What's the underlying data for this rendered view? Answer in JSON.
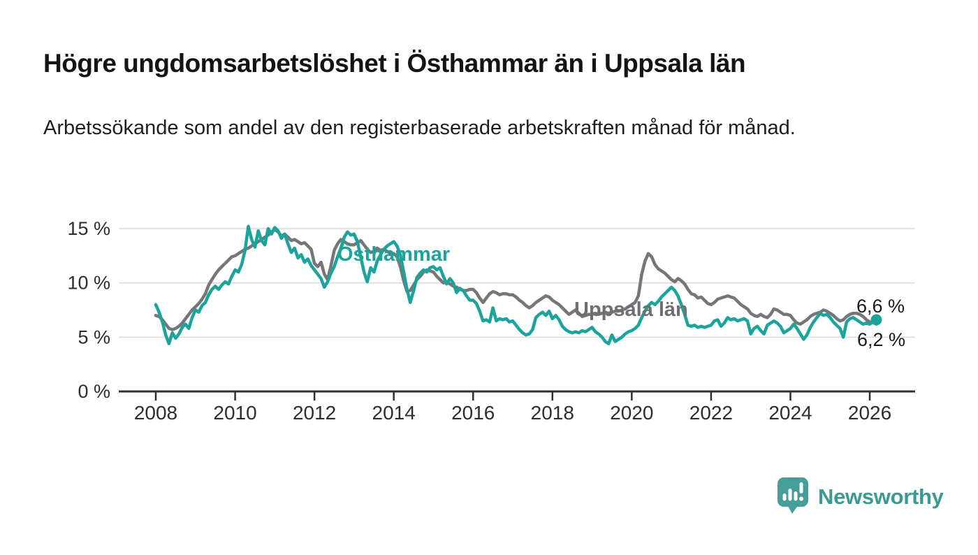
{
  "header": {
    "title": "Högre ungdomsarbetslöshet i Östhammar än i Uppsala län",
    "subtitle": "Arbetssökande som andel av den registerbaserade arbetskraften månad för månad."
  },
  "chart_data": {
    "type": "line",
    "title": "Högre ungdomsarbetslöshet i Östhammar än i Uppsala län",
    "subtitle": "Arbetssökande som andel av den registerbaserade arbetskraften månad för månad.",
    "unit": "%",
    "frequency": "monthly",
    "x_start": "2008-01",
    "x_end": "2026-03",
    "grid": "horizontal-only",
    "legend_position": "inline-labels-on-lines",
    "y_axis": {
      "range": [
        0,
        15.5
      ],
      "ticks": [
        {
          "value": 0,
          "label": "0 %"
        },
        {
          "value": 5,
          "label": "5 %"
        },
        {
          "value": 10,
          "label": "10 %"
        },
        {
          "value": 15,
          "label": "15 %"
        }
      ]
    },
    "x_axis": {
      "ticks": [
        2008,
        2010,
        2012,
        2014,
        2016,
        2018,
        2020,
        2022,
        2024,
        2026
      ]
    },
    "series": [
      {
        "name": "Uppsala län",
        "color": "#75767a",
        "values": [
          7.0,
          6.9,
          6.6,
          6.2,
          5.8,
          5.7,
          5.8,
          6.0,
          6.3,
          6.7,
          7.1,
          7.5,
          7.8,
          8.1,
          8.5,
          9.0,
          9.8,
          10.3,
          10.8,
          11.2,
          11.5,
          11.8,
          12.1,
          12.4,
          12.5,
          12.7,
          12.9,
          13.1,
          13.2,
          13.4,
          13.6,
          13.8,
          14.0,
          14.2,
          14.4,
          14.7,
          14.9,
          14.7,
          14.3,
          14.5,
          14.2,
          13.9,
          14.0,
          13.8,
          13.6,
          13.7,
          13.4,
          13.1,
          11.8,
          11.5,
          11.9,
          10.8,
          10.3,
          11.6,
          13.0,
          13.6,
          14.0,
          13.8,
          13.6,
          13.5,
          13.5,
          13.7,
          13.9,
          13.5,
          13.1,
          12.8,
          12.9,
          13.2,
          13.0,
          13.1,
          12.9,
          12.7,
          12.7,
          12.4,
          11.5,
          10.2,
          9.2,
          9.3,
          9.8,
          10.3,
          10.6,
          11.0,
          11.2,
          11.1,
          11.0,
          10.6,
          10.3,
          10.0,
          10.1,
          9.9,
          9.7,
          9.6,
          9.4,
          9.3,
          9.3,
          9.4,
          9.4,
          9.1,
          8.6,
          8.2,
          8.6,
          9.0,
          9.2,
          9.1,
          8.9,
          9.0,
          9.0,
          8.9,
          8.9,
          8.7,
          8.4,
          8.2,
          7.9,
          7.7,
          7.9,
          8.2,
          8.4,
          8.6,
          8.8,
          8.7,
          8.4,
          8.2,
          8.0,
          7.7,
          7.4,
          7.1,
          7.3,
          7.5,
          7.2,
          6.9,
          7.0,
          7.1,
          7.1,
          7.2,
          7.1,
          7.2,
          7.3,
          7.2,
          7.3,
          7.4,
          7.4,
          7.5,
          7.6,
          7.8,
          8.0,
          8.2,
          8.8,
          10.8,
          12.0,
          12.7,
          12.4,
          11.7,
          11.3,
          11.1,
          10.9,
          10.6,
          10.3,
          10.1,
          10.4,
          10.2,
          9.9,
          9.4,
          9.0,
          8.9,
          8.6,
          8.7,
          8.4,
          8.1,
          8.0,
          8.2,
          8.5,
          8.6,
          8.7,
          8.8,
          8.7,
          8.6,
          8.3,
          8.0,
          7.8,
          7.6,
          7.2,
          7.0,
          6.9,
          7.1,
          6.9,
          6.8,
          7.1,
          7.6,
          7.5,
          7.3,
          7.1,
          7.1,
          7.0,
          6.6,
          6.3,
          6.2,
          6.4,
          6.6,
          6.9,
          7.1,
          7.2,
          7.3,
          7.5,
          7.4,
          7.2,
          7.0,
          6.7,
          6.5,
          6.6,
          6.9,
          7.1,
          7.2,
          7.2,
          7.1,
          6.9,
          6.6,
          6.4,
          6.4,
          6.2
        ]
      },
      {
        "name": "Östhammar",
        "color": "#1ba49c",
        "values": [
          8.0,
          7.3,
          6.4,
          5.2,
          4.4,
          5.4,
          4.9,
          5.3,
          5.9,
          6.2,
          5.8,
          6.8,
          7.5,
          7.3,
          7.9,
          8.2,
          8.9,
          9.4,
          9.7,
          9.4,
          9.8,
          10.1,
          9.9,
          10.6,
          11.2,
          11.0,
          11.7,
          13.0,
          15.2,
          14.0,
          13.3,
          14.8,
          13.9,
          13.5,
          15.0,
          14.5,
          15.1,
          14.8,
          14.1,
          14.5,
          13.6,
          12.8,
          13.2,
          12.3,
          12.6,
          11.9,
          12.2,
          11.6,
          11.2,
          10.8,
          10.4,
          9.6,
          10.1,
          10.9,
          11.5,
          12.4,
          13.2,
          14.2,
          14.7,
          14.4,
          14.5,
          13.8,
          12.4,
          11.0,
          10.1,
          11.4,
          11.0,
          12.0,
          12.6,
          13.1,
          13.4,
          13.6,
          13.8,
          13.4,
          12.6,
          11.0,
          9.4,
          8.2,
          9.3,
          10.5,
          10.9,
          11.2,
          11.0,
          11.4,
          11.5,
          11.2,
          11.4,
          10.6,
          9.9,
          10.4,
          10.0,
          9.1,
          9.5,
          9.3,
          8.8,
          8.4,
          8.4,
          8.1,
          7.4,
          6.5,
          6.6,
          6.4,
          7.7,
          6.5,
          6.7,
          6.6,
          6.7,
          6.4,
          6.5,
          6.1,
          5.7,
          5.4,
          5.2,
          5.3,
          5.7,
          6.8,
          7.1,
          7.3,
          7.0,
          7.4,
          6.7,
          7.0,
          6.6,
          6.0,
          5.7,
          5.5,
          5.4,
          5.5,
          5.4,
          5.6,
          5.5,
          5.7,
          5.9,
          5.5,
          5.3,
          5.0,
          4.6,
          4.4,
          5.2,
          4.6,
          4.8,
          5.0,
          5.3,
          5.5,
          5.6,
          5.8,
          6.1,
          6.8,
          7.4,
          7.9,
          8.2,
          8.0,
          8.3,
          8.7,
          9.0,
          9.3,
          9.6,
          9.3,
          8.8,
          8.0,
          7.1,
          6.1,
          6.0,
          6.1,
          5.9,
          6.0,
          5.9,
          6.0,
          6.1,
          6.5,
          6.6,
          6.0,
          6.3,
          6.8,
          6.6,
          6.7,
          6.5,
          6.6,
          6.7,
          6.5,
          5.3,
          5.8,
          6.0,
          5.6,
          5.3,
          6.1,
          6.3,
          6.5,
          6.3,
          6.0,
          5.4,
          5.6,
          5.8,
          6.2,
          5.8,
          5.3,
          4.8,
          5.2,
          5.9,
          6.4,
          6.8,
          7.2,
          7.0,
          7.1,
          6.8,
          6.4,
          6.1,
          5.8,
          5.0,
          6.4,
          6.7,
          6.8,
          6.6,
          6.4,
          6.2,
          6.3,
          6.2,
          6.4,
          6.6
        ]
      }
    ],
    "end_labels": [
      {
        "series": "Östhammar",
        "label": "6,6 %"
      },
      {
        "series": "Uppsala län",
        "label": "6,2 %"
      }
    ],
    "end_dot": {
      "series": "Östhammar",
      "value": 6.6
    }
  },
  "footer": {
    "brand": "Newsworthy"
  },
  "colors": {
    "osthammar": "#1ba49c",
    "uppsala": "#75767a",
    "grid": "#d9d9d9",
    "axis": "#2f2f2f",
    "brand_teal": "#459e98"
  }
}
